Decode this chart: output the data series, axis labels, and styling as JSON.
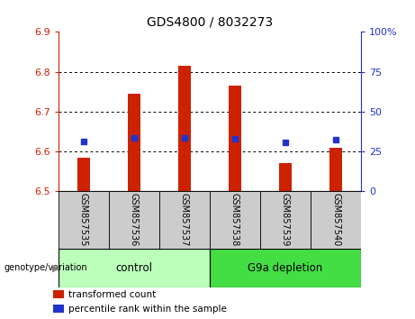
{
  "title": "GDS4800 / 8032273",
  "samples": [
    "GSM857535",
    "GSM857536",
    "GSM857537",
    "GSM857538",
    "GSM857539",
    "GSM857540"
  ],
  "bar_values": [
    6.585,
    6.745,
    6.815,
    6.765,
    6.57,
    6.61
  ],
  "bar_bottom": 6.5,
  "blue_y_values": [
    6.625,
    6.635,
    6.635,
    6.632,
    6.624,
    6.63
  ],
  "ylim_left": [
    6.5,
    6.9
  ],
  "ylim_right": [
    0,
    100
  ],
  "yticks_left": [
    6.5,
    6.6,
    6.7,
    6.8,
    6.9
  ],
  "yticks_right": [
    0,
    25,
    50,
    75,
    100
  ],
  "ytick_right_labels": [
    "0",
    "25",
    "50",
    "75",
    "100%"
  ],
  "bar_color": "#cc2200",
  "blue_color": "#2233cc",
  "groups": [
    {
      "label": "control",
      "samples": [
        0,
        1,
        2
      ],
      "color": "#bbffbb"
    },
    {
      "label": "G9a depletion",
      "samples": [
        3,
        4,
        5
      ],
      "color": "#44dd44"
    }
  ],
  "group_label_prefix": "genotype/variation",
  "legend_items": [
    {
      "label": "transformed count",
      "color": "#cc2200"
    },
    {
      "label": "percentile rank within the sample",
      "color": "#2233cc"
    }
  ],
  "tick_area_color": "#cccccc",
  "left_tick_color": "#cc2200",
  "right_tick_color": "#2233cc",
  "bar_width": 0.25
}
